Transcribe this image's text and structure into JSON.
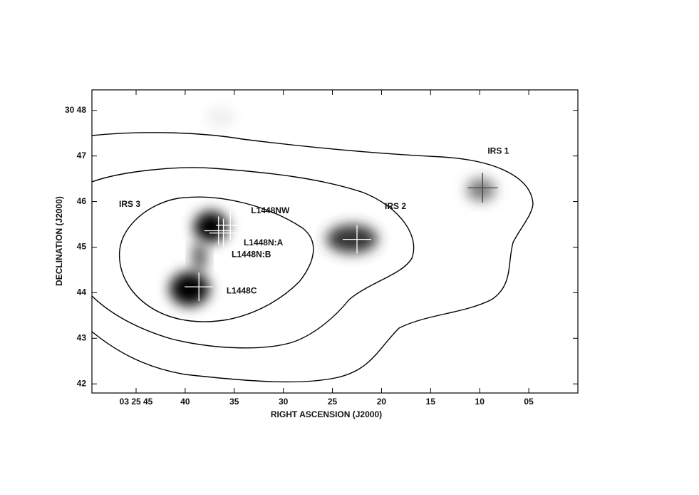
{
  "chart_data": {
    "type": "map",
    "xlabel": "RIGHT ASCENSION (J2000)",
    "ylabel": "DECLINATION (J2000)",
    "xlim": [
      49.5,
      0
    ],
    "ylim": [
      41.8,
      48.45
    ],
    "xticks": [
      {
        "value": 45,
        "label": "03 25 45"
      },
      40,
      35,
      30,
      25,
      20,
      15,
      10,
      {
        "value": 5,
        "label": "05"
      }
    ],
    "yticks": [
      {
        "value": 48,
        "label": "30 48"
      },
      47,
      46,
      45,
      44,
      43,
      42
    ],
    "sources": [
      {
        "label": "IRS 1",
        "ra": 9.7,
        "dec": 46.3,
        "color": "#444444"
      },
      {
        "label": "IRS 2",
        "ra": 22.5,
        "dec": 45.17,
        "color": "#ffffff"
      },
      {
        "label": "L1448NW",
        "ra": 35.4,
        "dec": 45.48,
        "color": "#ffffff"
      },
      {
        "label": "L1448N:A",
        "ra": 36.1,
        "dec": 45.31,
        "color": "#ffffff"
      },
      {
        "label": "L1448N:B",
        "ra": 36.6,
        "dec": 45.36,
        "color": "#ffffff"
      },
      {
        "label": "L1448C",
        "ra": 38.6,
        "dec": 44.13,
        "color": "#ffffff"
      }
    ],
    "annotations": [
      "IRS 3"
    ]
  }
}
